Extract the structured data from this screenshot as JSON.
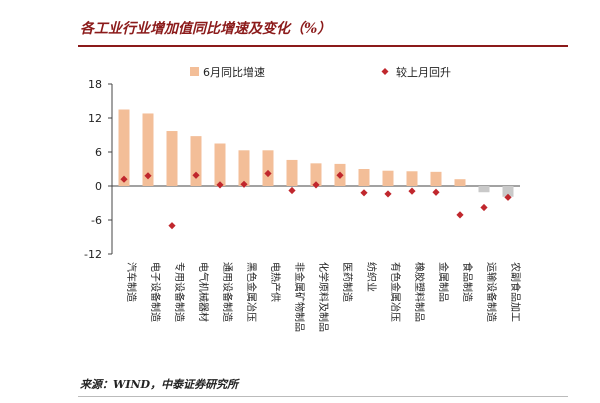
{
  "title": "各工业行业增加值同比增速及变化（%）",
  "source": "来源：WIND，中泰证券研究所",
  "chart_data": {
    "type": "bar",
    "categories": [
      "汽车制造",
      "电子设备制造",
      "专用设备制造",
      "电气机械器材",
      "通用设备制造",
      "黑色金属冶压",
      "电热产供",
      "非金属矿物制品",
      "化学原料及制品",
      "医药制造",
      "纺织业",
      "有色金属冶压",
      "橡胶塑料制品",
      "金属制品",
      "食品制造",
      "运输设备制造",
      "农副食品加工"
    ],
    "series": [
      {
        "name": "6月同比增速",
        "type": "bar",
        "color": "#f3be98",
        "values": [
          13.5,
          12.8,
          9.7,
          8.8,
          7.5,
          6.3,
          6.3,
          4.6,
          4.0,
          3.9,
          3.0,
          2.7,
          2.6,
          2.5,
          1.2,
          -1.1,
          -1.9
        ]
      },
      {
        "name": "较上月回升",
        "type": "marker",
        "color": "#c0272d",
        "values": [
          1.2,
          1.8,
          -7.0,
          1.9,
          0.2,
          0.3,
          2.2,
          -0.8,
          0.2,
          1.9,
          -1.2,
          -1.4,
          -0.9,
          -1.1,
          -5.1,
          -3.8,
          -2.0
        ]
      }
    ],
    "yticks": [
      18,
      12,
      6,
      0,
      -6,
      -12
    ],
    "ylim": [
      -12,
      18
    ],
    "legend_position": "top"
  }
}
